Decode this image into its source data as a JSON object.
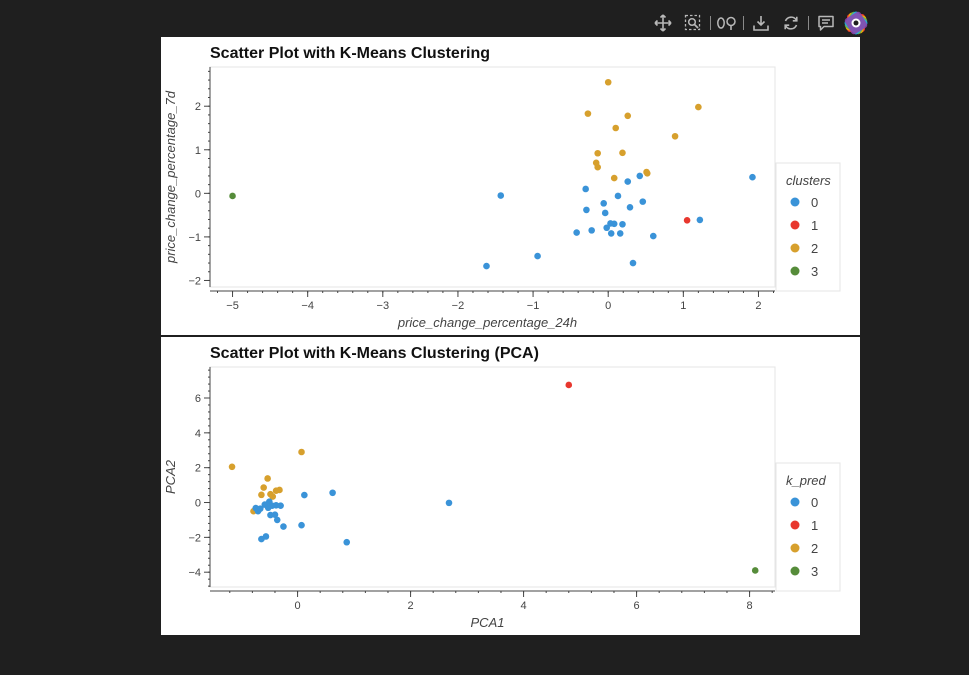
{
  "toolbar": {
    "tools": [
      "pan-tool",
      "box-zoom-tool",
      "wheel-zoom-tool",
      "save-tool",
      "reset-tool",
      "hover-tool",
      "bokeh-logo"
    ]
  },
  "colors": {
    "0": "#3a93d8",
    "1": "#e8372e",
    "2": "#d7a02d",
    "3": "#568c3a"
  },
  "chart_data": [
    {
      "type": "scatter",
      "title": "Scatter Plot with K-Means Clustering",
      "xlabel": "price_change_percentage_24h",
      "ylabel": "price_change_percentage_7d",
      "xlim": [
        -5.3,
        2.22
      ],
      "ylim": [
        -2.15,
        2.9
      ],
      "xticks": [
        -5,
        -4,
        -3,
        -2,
        -1,
        0,
        1,
        2
      ],
      "yticks": [
        -2,
        -1,
        0,
        1,
        2
      ],
      "legend_title": "clusters",
      "legend": [
        "0",
        "1",
        "2",
        "3"
      ],
      "legend_position": "right",
      "points": [
        {
          "x": -5.0,
          "y": -0.06,
          "c": 3
        },
        {
          "x": 1.05,
          "y": -0.62,
          "c": 1
        },
        {
          "x": 0.0,
          "y": 2.55,
          "c": 2
        },
        {
          "x": 1.2,
          "y": 1.98,
          "c": 2
        },
        {
          "x": -0.27,
          "y": 1.83,
          "c": 2
        },
        {
          "x": 0.26,
          "y": 1.78,
          "c": 2
        },
        {
          "x": 0.1,
          "y": 1.5,
          "c": 2
        },
        {
          "x": 0.89,
          "y": 1.31,
          "c": 2
        },
        {
          "x": -0.14,
          "y": 0.92,
          "c": 2
        },
        {
          "x": 0.19,
          "y": 0.93,
          "c": 2
        },
        {
          "x": -0.16,
          "y": 0.7,
          "c": 2
        },
        {
          "x": -0.14,
          "y": 0.6,
          "c": 2
        },
        {
          "x": 0.51,
          "y": 0.49,
          "c": 2
        },
        {
          "x": 0.52,
          "y": 0.46,
          "c": 2
        },
        {
          "x": 0.08,
          "y": 0.35,
          "c": 2
        },
        {
          "x": 1.92,
          "y": 0.37,
          "c": 0
        },
        {
          "x": -1.43,
          "y": -0.05,
          "c": 0
        },
        {
          "x": 0.42,
          "y": 0.4,
          "c": 0
        },
        {
          "x": 0.26,
          "y": 0.27,
          "c": 0
        },
        {
          "x": -0.3,
          "y": 0.1,
          "c": 0
        },
        {
          "x": 0.13,
          "y": -0.06,
          "c": 0
        },
        {
          "x": -0.06,
          "y": -0.23,
          "c": 0
        },
        {
          "x": 0.46,
          "y": -0.19,
          "c": 0
        },
        {
          "x": 0.29,
          "y": -0.32,
          "c": 0
        },
        {
          "x": -0.29,
          "y": -0.38,
          "c": 0
        },
        {
          "x": -0.04,
          "y": -0.45,
          "c": 0
        },
        {
          "x": 0.03,
          "y": -0.69,
          "c": 0
        },
        {
          "x": 0.08,
          "y": -0.7,
          "c": 0
        },
        {
          "x": 0.19,
          "y": -0.71,
          "c": 0
        },
        {
          "x": -0.02,
          "y": -0.79,
          "c": 0
        },
        {
          "x": -0.22,
          "y": -0.85,
          "c": 0
        },
        {
          "x": -0.42,
          "y": -0.9,
          "c": 0
        },
        {
          "x": 0.04,
          "y": -0.92,
          "c": 0
        },
        {
          "x": 0.16,
          "y": -0.92,
          "c": 0
        },
        {
          "x": 0.6,
          "y": -0.98,
          "c": 0
        },
        {
          "x": 1.22,
          "y": -0.61,
          "c": 0
        },
        {
          "x": -0.94,
          "y": -1.44,
          "c": 0
        },
        {
          "x": -1.62,
          "y": -1.67,
          "c": 0
        },
        {
          "x": 0.33,
          "y": -1.6,
          "c": 0
        }
      ]
    },
    {
      "type": "scatter",
      "title": "Scatter Plot with K-Means Clustering (PCA)",
      "xlabel": "PCA1",
      "ylabel": "PCA2",
      "xlim": [
        -1.55,
        8.45
      ],
      "ylim": [
        -4.85,
        7.78
      ],
      "xticks": [
        0,
        2,
        4,
        6,
        8
      ],
      "yticks": [
        -4,
        -2,
        0,
        2,
        4,
        6
      ],
      "legend_title": "k_pred",
      "legend": [
        "0",
        "1",
        "2",
        "3"
      ],
      "legend_position": "right",
      "points": [
        {
          "x": 4.8,
          "y": 6.75,
          "c": 1
        },
        {
          "x": 8.1,
          "y": -3.9,
          "c": 3
        },
        {
          "x": -1.16,
          "y": 2.05,
          "c": 2
        },
        {
          "x": 0.07,
          "y": 2.9,
          "c": 2
        },
        {
          "x": -0.53,
          "y": 1.38,
          "c": 2
        },
        {
          "x": -0.6,
          "y": 0.86,
          "c": 2
        },
        {
          "x": -0.32,
          "y": 0.72,
          "c": 2
        },
        {
          "x": -0.38,
          "y": 0.68,
          "c": 2
        },
        {
          "x": -0.64,
          "y": 0.44,
          "c": 2
        },
        {
          "x": -0.48,
          "y": 0.48,
          "c": 2
        },
        {
          "x": -0.44,
          "y": 0.34,
          "c": 2
        },
        {
          "x": -0.78,
          "y": -0.5,
          "c": 2
        },
        {
          "x": 0.12,
          "y": 0.43,
          "c": 0
        },
        {
          "x": 0.62,
          "y": 0.56,
          "c": 0
        },
        {
          "x": 2.68,
          "y": -0.02,
          "c": 0
        },
        {
          "x": -0.5,
          "y": 0.05,
          "c": 0
        },
        {
          "x": -0.58,
          "y": -0.12,
          "c": 0
        },
        {
          "x": -0.45,
          "y": -0.18,
          "c": 0
        },
        {
          "x": -0.38,
          "y": -0.16,
          "c": 0
        },
        {
          "x": -0.3,
          "y": -0.18,
          "c": 0
        },
        {
          "x": -0.74,
          "y": -0.32,
          "c": 0
        },
        {
          "x": -0.66,
          "y": -0.35,
          "c": 0
        },
        {
          "x": -0.52,
          "y": -0.3,
          "c": 0
        },
        {
          "x": -0.7,
          "y": -0.5,
          "c": 0
        },
        {
          "x": -0.48,
          "y": -0.72,
          "c": 0
        },
        {
          "x": -0.4,
          "y": -0.7,
          "c": 0
        },
        {
          "x": -0.36,
          "y": -1.0,
          "c": 0
        },
        {
          "x": -0.25,
          "y": -1.38,
          "c": 0
        },
        {
          "x": 0.07,
          "y": -1.3,
          "c": 0
        },
        {
          "x": -0.56,
          "y": -1.95,
          "c": 0
        },
        {
          "x": -0.64,
          "y": -2.1,
          "c": 0
        },
        {
          "x": 0.87,
          "y": -2.28,
          "c": 0
        }
      ]
    }
  ]
}
